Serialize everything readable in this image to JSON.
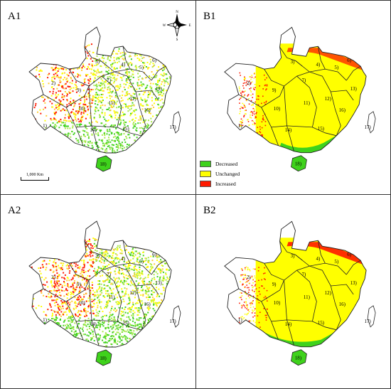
{
  "panels": [
    {
      "id": "A1",
      "label": "A1",
      "style": "scatter"
    },
    {
      "id": "B1",
      "label": "B1",
      "style": "classified"
    },
    {
      "id": "A2",
      "label": "A2",
      "style": "scatter"
    },
    {
      "id": "B2",
      "label": "B2",
      "style": "classified"
    }
  ],
  "regions": [
    "1)",
    "2)",
    "3)",
    "4)",
    "5)",
    "6)",
    "7)",
    "9)",
    "10)",
    "11)",
    "12)",
    "13)",
    "14)",
    "15)",
    "16)",
    "17)",
    "18)"
  ],
  "legend": {
    "items": [
      {
        "label": "Decreased",
        "color": "#3fd21c"
      },
      {
        "label": "Unchanged",
        "color": "#ffff00"
      },
      {
        "label": "Increased",
        "color": "#ff1a00"
      }
    ]
  },
  "scale_bar": {
    "label": "1,000 Km"
  },
  "compass": {
    "n": "N",
    "s": "S",
    "e": "E",
    "w": "W"
  }
}
